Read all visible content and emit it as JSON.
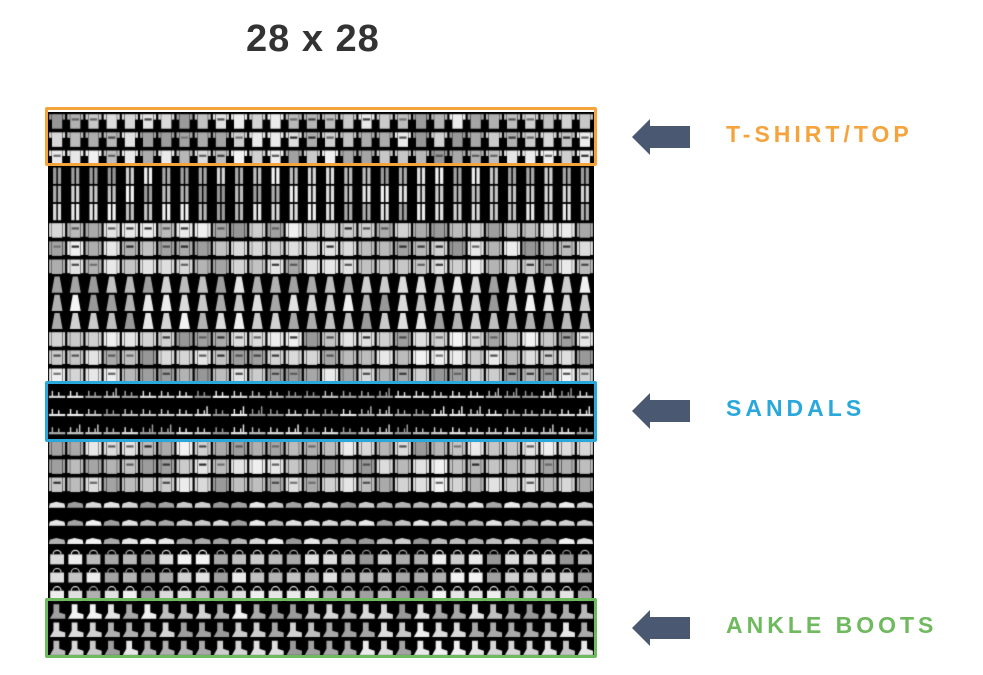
{
  "title": "28 x 28",
  "categories": [
    {
      "key": "top",
      "label": "T-SHIRT/TOP",
      "color": "#F5A33C"
    },
    {
      "key": "sand",
      "label": "SANDALS",
      "color": "#2AA8DC"
    },
    {
      "key": "boots",
      "label": "ANKLE BOOTS",
      "color": "#6FB95F"
    }
  ],
  "arrow_color": "#4A5872",
  "grid": {
    "cols": 30,
    "rows": 30
  }
}
